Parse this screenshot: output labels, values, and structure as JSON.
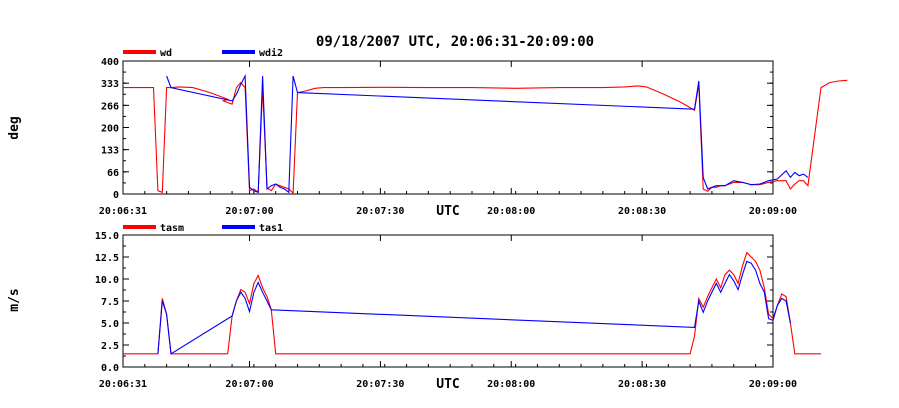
{
  "title": "09/18/2007  UTC, 20:06:31-20:09:00",
  "x_axis": {
    "label": "UTC",
    "ticks": [
      "20:06:31",
      "20:07:00",
      "20:07:30",
      "20:08:00",
      "20:08:30",
      "20:09:00"
    ]
  },
  "colors": {
    "series1": "#ff0000",
    "series2": "#0000ff",
    "axis": "#000000"
  },
  "chart_data": [
    {
      "type": "line",
      "ylabel": "deg",
      "ylim": [
        0,
        400
      ],
      "yticks": [
        "0",
        "66",
        "133",
        "200",
        "266",
        "333",
        "400"
      ],
      "x_unit": "seconds after 20:06:31",
      "series": [
        {
          "name": "wd",
          "points": [
            [
              0,
              320
            ],
            [
              7,
              320
            ],
            [
              8,
              10
            ],
            [
              9,
              5
            ],
            [
              10,
              320
            ],
            [
              11,
              320
            ],
            [
              13,
              322
            ],
            [
              16,
              320
            ],
            [
              20,
              305
            ],
            [
              24,
              285
            ],
            [
              23,
              280
            ],
            [
              25,
              270
            ],
            [
              26,
              320
            ],
            [
              27,
              335
            ],
            [
              28,
              320
            ],
            [
              29,
              10
            ],
            [
              30,
              15
            ],
            [
              31,
              5
            ],
            [
              32,
              320
            ],
            [
              33,
              18
            ],
            [
              34,
              10
            ],
            [
              35,
              30
            ],
            [
              36,
              25
            ],
            [
              37,
              20
            ],
            [
              38,
              15
            ],
            [
              39,
              3
            ],
            [
              40,
              305
            ],
            [
              42,
              310
            ],
            [
              44,
              318
            ],
            [
              46,
              320
            ],
            [
              50,
              320
            ],
            [
              60,
              321
            ],
            [
              70,
              320
            ],
            [
              80,
              320
            ],
            [
              90,
              318
            ],
            [
              100,
              320
            ],
            [
              110,
              320
            ],
            [
              115,
              322
            ],
            [
              118,
              325
            ],
            [
              120,
              322
            ],
            [
              124,
              300
            ],
            [
              128,
              275
            ],
            [
              131,
              252
            ],
            [
              132,
              330
            ],
            [
              133,
              15
            ],
            [
              134,
              8
            ],
            [
              135,
              20
            ],
            [
              136,
              20
            ],
            [
              137,
              25
            ],
            [
              138,
              25
            ],
            [
              140,
              35
            ],
            [
              142,
              35
            ],
            [
              144,
              28
            ],
            [
              146,
              28
            ],
            [
              148,
              35
            ],
            [
              150,
              40
            ],
            [
              152,
              40
            ],
            [
              153,
              15
            ],
            [
              154,
              30
            ],
            [
              155,
              40
            ],
            [
              156,
              40
            ],
            [
              157,
              25
            ],
            [
              160,
              320
            ],
            [
              162,
              335
            ],
            [
              164,
              340
            ],
            [
              166,
              342
            ]
          ]
        },
        {
          "name": "wdi2",
          "points": [
            [
              10,
              355
            ],
            [
              11,
              320
            ],
            [
              25,
              280
            ],
            [
              26,
              300
            ],
            [
              27,
              330
            ],
            [
              28,
              355
            ],
            [
              29,
              20
            ],
            [
              30,
              10
            ],
            [
              31,
              5
            ],
            [
              32,
              355
            ],
            [
              33,
              15
            ],
            [
              34,
              25
            ],
            [
              35,
              30
            ],
            [
              36,
              20
            ],
            [
              37,
              15
            ],
            [
              38,
              5
            ],
            [
              39,
              355
            ],
            [
              40,
              305
            ],
            [
              131,
              255
            ],
            [
              132,
              340
            ],
            [
              133,
              50
            ],
            [
              134,
              15
            ],
            [
              135,
              20
            ],
            [
              136,
              25
            ],
            [
              137,
              25
            ],
            [
              138,
              25
            ],
            [
              140,
              40
            ],
            [
              142,
              35
            ],
            [
              144,
              28
            ],
            [
              146,
              30
            ],
            [
              148,
              40
            ],
            [
              150,
              45
            ],
            [
              152,
              70
            ],
            [
              153,
              50
            ],
            [
              154,
              65
            ],
            [
              155,
              55
            ],
            [
              156,
              60
            ],
            [
              157,
              50
            ]
          ]
        }
      ]
    },
    {
      "type": "line",
      "ylabel": "m/s",
      "ylim": [
        0,
        15
      ],
      "yticks": [
        "0.0",
        "2.5",
        "5.0",
        "7.5",
        "10.0",
        "12.5",
        "15.0"
      ],
      "x_unit": "seconds after 20:06:31",
      "series": [
        {
          "name": "tasm",
          "points": [
            [
              0,
              1.5
            ],
            [
              8,
              1.5
            ],
            [
              9,
              7.8
            ],
            [
              10,
              6.0
            ],
            [
              11,
              1.5
            ],
            [
              24,
              1.5
            ],
            [
              25,
              5.8
            ],
            [
              26,
              7.5
            ],
            [
              27,
              8.8
            ],
            [
              28,
              8.5
            ],
            [
              29,
              7.2
            ],
            [
              30,
              9.5
            ],
            [
              31,
              10.4
            ],
            [
              32,
              9.0
            ],
            [
              33,
              8.0
            ],
            [
              34,
              6.5
            ],
            [
              35,
              1.5
            ],
            [
              60,
              1.5
            ],
            [
              100,
              1.5
            ],
            [
              130,
              1.5
            ],
            [
              131,
              3.5
            ],
            [
              132,
              7.8
            ],
            [
              133,
              6.8
            ],
            [
              134,
              8.0
            ],
            [
              135,
              9.0
            ],
            [
              136,
              10.0
            ],
            [
              137,
              9.0
            ],
            [
              138,
              10.5
            ],
            [
              139,
              11.0
            ],
            [
              140,
              10.5
            ],
            [
              141,
              9.5
            ],
            [
              142,
              11.5
            ],
            [
              143,
              13.0
            ],
            [
              144,
              12.5
            ],
            [
              145,
              12.0
            ],
            [
              146,
              11.0
            ],
            [
              147,
              9.0
            ],
            [
              148,
              6.0
            ],
            [
              149,
              5.5
            ],
            [
              150,
              7.0
            ],
            [
              151,
              8.3
            ],
            [
              152,
              8.0
            ],
            [
              153,
              5.0
            ],
            [
              154,
              1.5
            ],
            [
              160,
              1.5
            ]
          ]
        },
        {
          "name": "tas1",
          "points": [
            [
              8,
              1.5
            ],
            [
              9,
              7.5
            ],
            [
              10,
              6.0
            ],
            [
              11,
              1.5
            ],
            [
              25,
              5.8
            ],
            [
              26,
              7.5
            ],
            [
              27,
              8.5
            ],
            [
              28,
              7.8
            ],
            [
              29,
              6.3
            ],
            [
              30,
              8.5
            ],
            [
              31,
              9.6
            ],
            [
              32,
              8.5
            ],
            [
              33,
              7.5
            ],
            [
              34,
              6.5
            ],
            [
              131,
              4.5
            ],
            [
              132,
              7.5
            ],
            [
              133,
              6.2
            ],
            [
              134,
              7.5
            ],
            [
              135,
              8.5
            ],
            [
              136,
              9.5
            ],
            [
              137,
              8.5
            ],
            [
              138,
              9.5
            ],
            [
              139,
              10.5
            ],
            [
              140,
              9.8
            ],
            [
              141,
              8.8
            ],
            [
              142,
              10.5
            ],
            [
              143,
              12.0
            ],
            [
              144,
              11.8
            ],
            [
              145,
              11.0
            ],
            [
              146,
              9.5
            ],
            [
              147,
              8.5
            ],
            [
              148,
              5.5
            ],
            [
              149,
              5.3
            ],
            [
              150,
              7.0
            ],
            [
              151,
              7.8
            ],
            [
              152,
              7.5
            ],
            [
              153,
              5.0
            ]
          ]
        }
      ]
    }
  ]
}
